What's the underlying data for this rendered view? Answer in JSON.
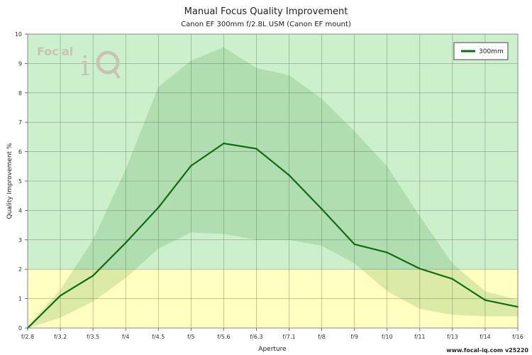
{
  "chart_data": {
    "type": "line",
    "title": "Manual Focus Quality Improvement",
    "subtitle": "Canon EF 300mm f/2.8L USM (Canon EF mount)",
    "xlabel": "Aperture",
    "ylabel": "Quality Improvement %",
    "categories": [
      "f/2.8",
      "f/3.2",
      "f/3.5",
      "f/4",
      "f/4.5",
      "f/5",
      "f/5.6",
      "f/6.3",
      "f/7.1",
      "f/8",
      "f/9",
      "f/10",
      "f/11",
      "f/13",
      "f/14",
      "f/16"
    ],
    "ylim": [
      0,
      10
    ],
    "yticks": [
      "0",
      "1",
      "2",
      "3",
      "4",
      "5",
      "6",
      "7",
      "8",
      "9",
      "10"
    ],
    "grid": true,
    "legend_position": "top-right",
    "zones": [
      {
        "name": "low",
        "from": 0,
        "to": 2,
        "color": "#ffffc0"
      },
      {
        "name": "high",
        "from": 2,
        "to": 10,
        "color": "#ccf0cc"
      }
    ],
    "band_upper": [
      0.05,
      1.3,
      3.0,
      5.4,
      8.2,
      9.1,
      9.55,
      8.85,
      8.6,
      7.8,
      6.7,
      5.5,
      3.8,
      2.2,
      1.25,
      0.95
    ],
    "band_lower": [
      0.0,
      0.35,
      0.9,
      1.7,
      2.7,
      3.25,
      3.2,
      3.0,
      3.0,
      2.8,
      2.2,
      1.25,
      0.65,
      0.45,
      0.4,
      0.4
    ],
    "band_color": "#2a8a2a",
    "series": [
      {
        "name": "300mm",
        "color": "#106c10",
        "values": [
          0.0,
          1.1,
          1.78,
          2.9,
          4.1,
          5.52,
          6.28,
          6.1,
          5.2,
          4.05,
          2.85,
          2.57,
          2.02,
          1.67,
          0.95,
          0.72
        ]
      }
    ]
  },
  "branding": {
    "logo_text_1": "Foc",
    "logo_text_2": "al",
    "logo_text_3": "i",
    "footer": "www.focal-iq.com  v25220"
  }
}
